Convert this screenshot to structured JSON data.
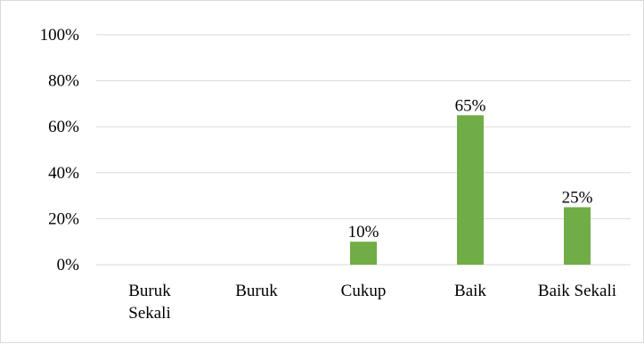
{
  "chart_data": {
    "type": "bar",
    "categories": [
      [
        "Buruk",
        "Sekali"
      ],
      [
        "Buruk"
      ],
      [
        "Cukup"
      ],
      [
        "Baik"
      ],
      [
        "Baik Sekali"
      ]
    ],
    "values": [
      0,
      0,
      10,
      65,
      25
    ],
    "data_labels": [
      "",
      "",
      "10%",
      "65%",
      "25%"
    ],
    "y_ticks": [
      0,
      20,
      40,
      60,
      80,
      100
    ],
    "y_tick_labels": [
      "0%",
      "20%",
      "40%",
      "60%",
      "80%",
      "100%"
    ],
    "ylim": [
      0,
      100
    ],
    "grid": true,
    "bar_color": "#70ad47",
    "gridline_color": "#d9d9d9"
  }
}
